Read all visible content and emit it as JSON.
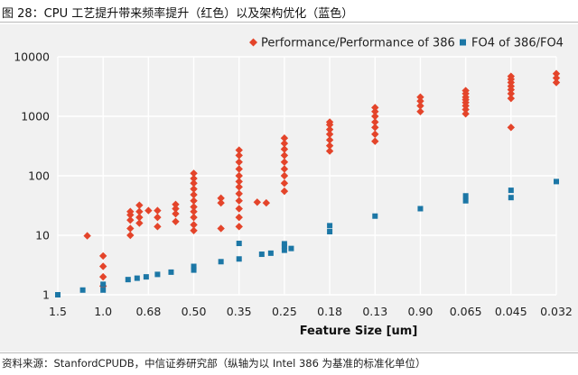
{
  "figure_title": "图 28：CPU 工艺提升带来频率提升（红色）以及架构优化（蓝色）",
  "source": "资料来源：StanfordCPUDB，中信证券研究部（纵轴为以 Intel 386 为基准的标准化单位）",
  "colors": {
    "red": "#e4442a",
    "blue": "#1c77a6",
    "grid": "#ffffff",
    "bg": "#f1f1f1"
  },
  "chart_data": {
    "type": "scatter",
    "xlabel": "Feature Size [um]",
    "x_categories": [
      "1.5",
      "1.0",
      "0.68",
      "0.50",
      "0.35",
      "0.25",
      "0.18",
      "0.13",
      "0.90",
      "0.065",
      "0.045",
      "0.032"
    ],
    "y_scale": "log",
    "ylim": [
      1,
      10000
    ],
    "y_ticks": [
      "1",
      "10",
      "100",
      "1000",
      "10000"
    ],
    "grid": true,
    "legend_position": "top-right",
    "series": [
      {
        "name": "Performance/Performance of 386",
        "marker": "diamond",
        "color": "#e4442a",
        "points": [
          {
            "x": 0.65,
            "y": 9.8
          },
          {
            "x": 1.0,
            "y": 1.4
          },
          {
            "x": 1.0,
            "y": 2.0
          },
          {
            "x": 1.0,
            "y": 3.0
          },
          {
            "x": 1.0,
            "y": 4.5
          },
          {
            "x": 1.6,
            "y": 10
          },
          {
            "x": 1.6,
            "y": 13
          },
          {
            "x": 1.6,
            "y": 18
          },
          {
            "x": 1.6,
            "y": 22
          },
          {
            "x": 1.6,
            "y": 25
          },
          {
            "x": 1.8,
            "y": 16
          },
          {
            "x": 1.8,
            "y": 20
          },
          {
            "x": 1.8,
            "y": 25
          },
          {
            "x": 1.8,
            "y": 32
          },
          {
            "x": 2.0,
            "y": 26
          },
          {
            "x": 2.2,
            "y": 14
          },
          {
            "x": 2.2,
            "y": 20
          },
          {
            "x": 2.2,
            "y": 26
          },
          {
            "x": 2.6,
            "y": 17
          },
          {
            "x": 2.6,
            "y": 23
          },
          {
            "x": 2.6,
            "y": 28
          },
          {
            "x": 2.6,
            "y": 33
          },
          {
            "x": 3.0,
            "y": 12
          },
          {
            "x": 3.0,
            "y": 15
          },
          {
            "x": 3.0,
            "y": 20
          },
          {
            "x": 3.0,
            "y": 25
          },
          {
            "x": 3.0,
            "y": 30
          },
          {
            "x": 3.0,
            "y": 38
          },
          {
            "x": 3.0,
            "y": 48
          },
          {
            "x": 3.0,
            "y": 60
          },
          {
            "x": 3.0,
            "y": 75
          },
          {
            "x": 3.0,
            "y": 90
          },
          {
            "x": 3.0,
            "y": 110
          },
          {
            "x": 3.6,
            "y": 13
          },
          {
            "x": 3.6,
            "y": 35
          },
          {
            "x": 3.6,
            "y": 42
          },
          {
            "x": 4.0,
            "y": 14
          },
          {
            "x": 4.0,
            "y": 20
          },
          {
            "x": 4.0,
            "y": 28
          },
          {
            "x": 4.0,
            "y": 38
          },
          {
            "x": 4.0,
            "y": 50
          },
          {
            "x": 4.0,
            "y": 65
          },
          {
            "x": 4.0,
            "y": 80
          },
          {
            "x": 4.0,
            "y": 100
          },
          {
            "x": 4.0,
            "y": 130
          },
          {
            "x": 4.0,
            "y": 170
          },
          {
            "x": 4.0,
            "y": 220
          },
          {
            "x": 4.0,
            "y": 270
          },
          {
            "x": 4.4,
            "y": 36
          },
          {
            "x": 4.6,
            "y": 35
          },
          {
            "x": 5.0,
            "y": 55
          },
          {
            "x": 5.0,
            "y": 75
          },
          {
            "x": 5.0,
            "y": 100
          },
          {
            "x": 5.0,
            "y": 130
          },
          {
            "x": 5.0,
            "y": 170
          },
          {
            "x": 5.0,
            "y": 220
          },
          {
            "x": 5.0,
            "y": 280
          },
          {
            "x": 5.0,
            "y": 350
          },
          {
            "x": 5.0,
            "y": 430
          },
          {
            "x": 6.0,
            "y": 260
          },
          {
            "x": 6.0,
            "y": 320
          },
          {
            "x": 6.0,
            "y": 400
          },
          {
            "x": 6.0,
            "y": 500
          },
          {
            "x": 6.0,
            "y": 600
          },
          {
            "x": 6.0,
            "y": 720
          },
          {
            "x": 6.0,
            "y": 800
          },
          {
            "x": 7.0,
            "y": 380
          },
          {
            "x": 7.0,
            "y": 500
          },
          {
            "x": 7.0,
            "y": 650
          },
          {
            "x": 7.0,
            "y": 800
          },
          {
            "x": 7.0,
            "y": 1000
          },
          {
            "x": 7.0,
            "y": 1200
          },
          {
            "x": 7.0,
            "y": 1400
          },
          {
            "x": 8.0,
            "y": 1200
          },
          {
            "x": 8.0,
            "y": 1500
          },
          {
            "x": 8.0,
            "y": 1800
          },
          {
            "x": 8.0,
            "y": 2100
          },
          {
            "x": 9.0,
            "y": 1100
          },
          {
            "x": 9.0,
            "y": 1300
          },
          {
            "x": 9.0,
            "y": 1500
          },
          {
            "x": 9.0,
            "y": 1700
          },
          {
            "x": 9.0,
            "y": 1900
          },
          {
            "x": 9.0,
            "y": 2100
          },
          {
            "x": 9.0,
            "y": 2400
          },
          {
            "x": 9.0,
            "y": 2700
          },
          {
            "x": 10.0,
            "y": 650
          },
          {
            "x": 10.0,
            "y": 2000
          },
          {
            "x": 10.0,
            "y": 2400
          },
          {
            "x": 10.0,
            "y": 2800
          },
          {
            "x": 10.0,
            "y": 3200
          },
          {
            "x": 10.0,
            "y": 3700
          },
          {
            "x": 10.0,
            "y": 4200
          },
          {
            "x": 10.0,
            "y": 4700
          },
          {
            "x": 11.0,
            "y": 3700
          },
          {
            "x": 11.0,
            "y": 4400
          },
          {
            "x": 11.0,
            "y": 5200
          }
        ]
      },
      {
        "name": "FO4 of 386/FO4",
        "marker": "square",
        "color": "#1c77a6",
        "points": [
          {
            "x": 0.0,
            "y": 1.0
          },
          {
            "x": 0.55,
            "y": 1.2
          },
          {
            "x": 1.0,
            "y": 1.2
          },
          {
            "x": 1.0,
            "y": 1.5
          },
          {
            "x": 1.55,
            "y": 1.8
          },
          {
            "x": 1.75,
            "y": 1.9
          },
          {
            "x": 1.95,
            "y": 2.0
          },
          {
            "x": 2.2,
            "y": 2.2
          },
          {
            "x": 2.5,
            "y": 2.4
          },
          {
            "x": 3.0,
            "y": 2.6
          },
          {
            "x": 3.0,
            "y": 3.0
          },
          {
            "x": 3.6,
            "y": 3.6
          },
          {
            "x": 4.0,
            "y": 4.0
          },
          {
            "x": 4.0,
            "y": 7.3
          },
          {
            "x": 4.5,
            "y": 4.8
          },
          {
            "x": 4.7,
            "y": 5.0
          },
          {
            "x": 5.0,
            "y": 5.6
          },
          {
            "x": 5.0,
            "y": 6.5
          },
          {
            "x": 5.0,
            "y": 7.2
          },
          {
            "x": 5.15,
            "y": 6.0
          },
          {
            "x": 6.0,
            "y": 11.5
          },
          {
            "x": 6.0,
            "y": 14.5
          },
          {
            "x": 7.0,
            "y": 21
          },
          {
            "x": 8.0,
            "y": 28
          },
          {
            "x": 9.0,
            "y": 38
          },
          {
            "x": 9.0,
            "y": 46
          },
          {
            "x": 10.0,
            "y": 43
          },
          {
            "x": 10.0,
            "y": 57
          },
          {
            "x": 11.0,
            "y": 80
          }
        ]
      }
    ]
  }
}
